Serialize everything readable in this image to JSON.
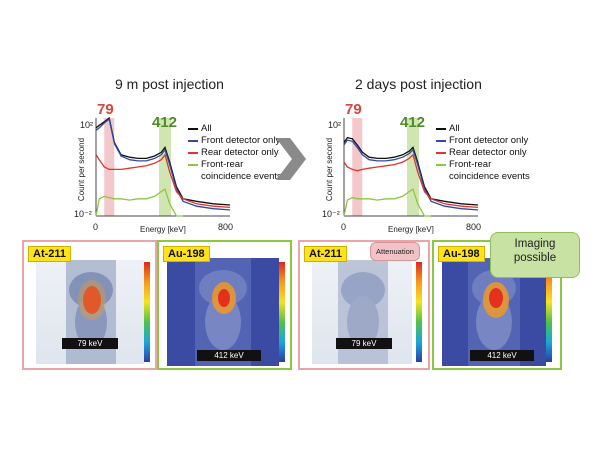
{
  "chart_data": [
    {
      "type": "line",
      "title": "9 m post injection",
      "xlabel": "Energy [keV]",
      "ylabel": "Count per second",
      "xlim": [
        0,
        800
      ],
      "ylim_log10": [
        -2,
        2
      ],
      "y_tick_labels": [
        "10²",
        "10⁻²"
      ],
      "x_tick_labels": [
        "0",
        "800"
      ],
      "peak_annotations": [
        {
          "label": "79",
          "energy": 79,
          "color": "#d6473a"
        },
        {
          "label": "412",
          "energy": 412,
          "color": "#4f8a2a"
        }
      ],
      "series": [
        {
          "name": "All",
          "color": "#111111",
          "x": [
            0,
            20,
            50,
            79,
            110,
            150,
            200,
            250,
            300,
            350,
            390,
            412,
            440,
            480,
            520,
            600,
            700,
            800
          ],
          "log_values": [
            1.6,
            1.7,
            1.85,
            2.0,
            1.0,
            0.5,
            0.4,
            0.35,
            0.35,
            0.45,
            0.6,
            0.8,
            0.2,
            -0.8,
            -1.3,
            -1.4,
            -1.5,
            -1.55
          ]
        },
        {
          "name": "Front detector only",
          "color": "#2f4aa8",
          "x": [
            0,
            20,
            50,
            79,
            110,
            150,
            200,
            250,
            300,
            350,
            390,
            412,
            440,
            480,
            520,
            600,
            700,
            800
          ],
          "log_values": [
            1.5,
            1.6,
            1.8,
            1.95,
            0.95,
            0.45,
            0.3,
            0.25,
            0.25,
            0.35,
            0.5,
            0.7,
            0.1,
            -0.9,
            -1.4,
            -1.6,
            -1.7,
            -1.75
          ]
        },
        {
          "name": "Rear detector only",
          "color": "#e3342b",
          "x": [
            0,
            20,
            50,
            79,
            110,
            150,
            200,
            250,
            300,
            350,
            390,
            412,
            440,
            480,
            520,
            600,
            700,
            800
          ],
          "log_values": [
            0.5,
            0.3,
            0.0,
            -0.1,
            -0.1,
            -0.1,
            -0.05,
            0.0,
            0.05,
            0.15,
            0.3,
            0.5,
            -0.2,
            -1.0,
            -1.3,
            -1.5,
            -1.6,
            -1.65
          ]
        },
        {
          "name": "Front-rear coincidence events",
          "color": "#8dc63f",
          "x": [
            0,
            20,
            50,
            79,
            110,
            150,
            200,
            250,
            300,
            350,
            390,
            412,
            440,
            480,
            520
          ],
          "log_values": [
            -2.0,
            -1.3,
            -1.2,
            -1.25,
            -1.3,
            -1.3,
            -1.35,
            -1.3,
            -1.3,
            -1.2,
            -1.0,
            -0.9,
            -1.5,
            -2.0,
            -2.0
          ]
        }
      ]
    },
    {
      "type": "line",
      "title": "2 days post injection",
      "xlabel": "Energy [keV]",
      "ylabel": "Count per second",
      "xlim": [
        0,
        800
      ],
      "ylim_log10": [
        -2,
        2
      ],
      "y_tick_labels": [
        "10²",
        "10⁻²"
      ],
      "x_tick_labels": [
        "0",
        "800"
      ],
      "peak_annotations": [
        {
          "label": "79",
          "energy": 79,
          "color": "#d6473a"
        },
        {
          "label": "412",
          "energy": 412,
          "color": "#4f8a2a"
        }
      ],
      "series": [
        {
          "name": "All",
          "color": "#111111",
          "x": [
            0,
            20,
            50,
            79,
            110,
            150,
            200,
            250,
            300,
            350,
            390,
            412,
            440,
            480,
            520,
            600,
            700,
            800
          ],
          "log_values": [
            1.0,
            1.2,
            1.15,
            0.9,
            0.6,
            0.4,
            0.35,
            0.35,
            0.4,
            0.5,
            0.65,
            0.8,
            0.2,
            -0.8,
            -1.3,
            -1.4,
            -1.5,
            -1.55
          ]
        },
        {
          "name": "Front detector only",
          "color": "#2f4aa8",
          "x": [
            0,
            20,
            50,
            79,
            110,
            150,
            200,
            250,
            300,
            350,
            390,
            412,
            440,
            480,
            520,
            600,
            700,
            800
          ],
          "log_values": [
            0.9,
            1.1,
            1.05,
            0.8,
            0.5,
            0.3,
            0.25,
            0.25,
            0.3,
            0.4,
            0.55,
            0.7,
            0.1,
            -0.9,
            -1.4,
            -1.6,
            -1.7,
            -1.75
          ]
        },
        {
          "name": "Rear detector only",
          "color": "#e3342b",
          "x": [
            0,
            20,
            50,
            79,
            110,
            150,
            200,
            250,
            300,
            350,
            390,
            412,
            440,
            480,
            520,
            600,
            700,
            800
          ],
          "log_values": [
            0.2,
            0.0,
            -0.1,
            -0.15,
            -0.1,
            -0.05,
            0.0,
            0.05,
            0.1,
            0.2,
            0.35,
            0.5,
            -0.2,
            -1.0,
            -1.3,
            -1.5,
            -1.6,
            -1.65
          ]
        },
        {
          "name": "Front-rear coincidence events",
          "color": "#8dc63f",
          "x": [
            0,
            20,
            50,
            79,
            110,
            150,
            200,
            250,
            300,
            350,
            390,
            412,
            440,
            480,
            520
          ],
          "log_values": [
            -2.0,
            -1.35,
            -1.25,
            -1.3,
            -1.3,
            -1.3,
            -1.35,
            -1.3,
            -1.3,
            -1.2,
            -1.0,
            -0.9,
            -1.5,
            -2.0,
            -2.0
          ]
        }
      ]
    }
  ],
  "legend": {
    "all": "All",
    "front": "Front detector only",
    "rear": "Rear detector only",
    "coinc_1": "Front-rear",
    "coinc_2": "coincidence events"
  },
  "panels": [
    {
      "isotope": "At-211",
      "energy": "79 keV",
      "border": "#e8a6ab",
      "activity": 0.9
    },
    {
      "isotope": "Au-198",
      "energy": "412 keV",
      "border": "#8dc63f",
      "activity": 0.8
    },
    {
      "isotope": "At-211",
      "energy": "79 keV",
      "border": "#e8a6ab",
      "activity": 0.1
    },
    {
      "isotope": "Au-198",
      "energy": "412 keV",
      "border": "#8dc63f",
      "activity": 0.85
    }
  ],
  "callouts": {
    "attenuation": "Attenuation",
    "imaging_1": "Imaging",
    "imaging_2": "possible"
  },
  "colors": {
    "pink_highlight": "#f4c7cb",
    "green_highlight": "#cfe6b0",
    "arrow": "#7a7a7a"
  }
}
